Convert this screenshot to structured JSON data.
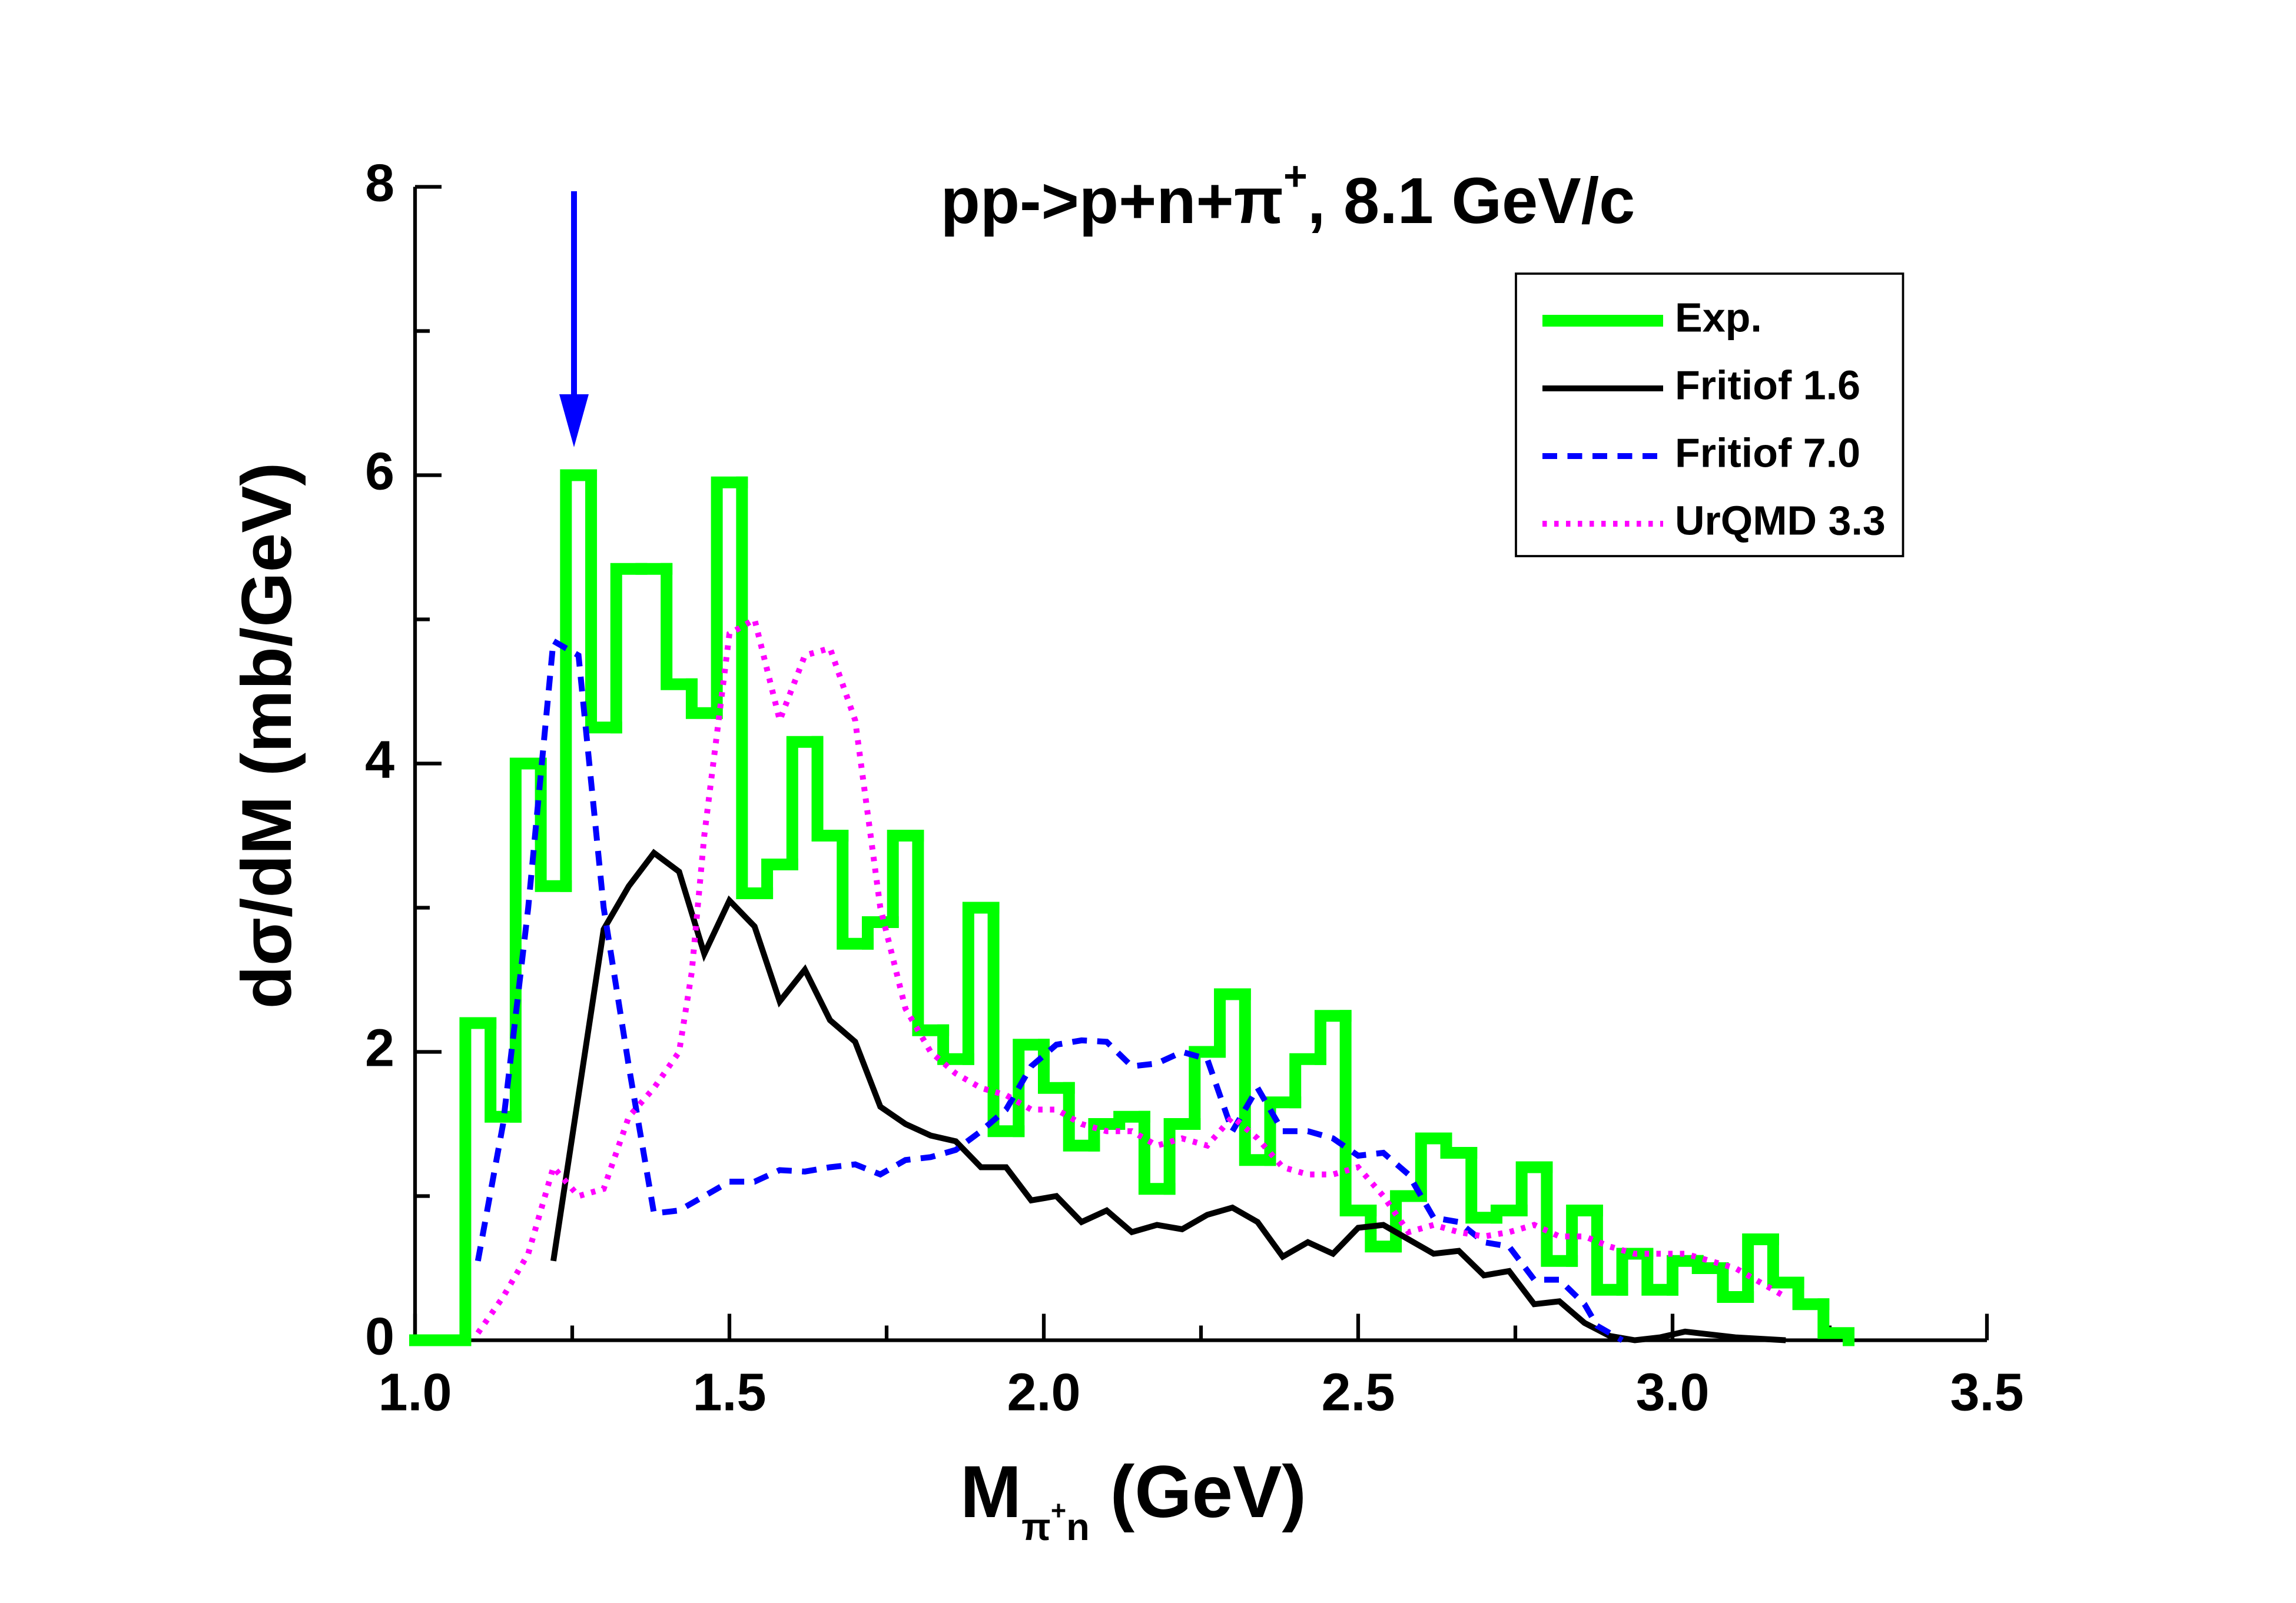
{
  "chart_data": {
    "type": "histogram",
    "title": [
      "pp->p+n+π",
      "+",
      ", 8.1 GeV/c"
    ],
    "xlabel": [
      "M",
      "π",
      "+",
      "n",
      " (GeV)"
    ],
    "ylabel": "dσ/dM (mb/GeV)",
    "xlim": [
      1.0,
      3.5
    ],
    "ylim": [
      0,
      8
    ],
    "xticks": [
      {
        "value": 1.0,
        "label": "1.0"
      },
      1.5,
      {
        "value": 2.0,
        "label": "2.0"
      },
      2.5,
      {
        "value": 3.0,
        "label": "3.0"
      },
      3.5
    ],
    "yticks": [
      0,
      2,
      4,
      6,
      8
    ],
    "xminor": [
      1.25,
      1.75,
      2.25,
      2.75,
      3.25
    ],
    "yminor": [
      1,
      3,
      5,
      7
    ],
    "legend": "upper right",
    "name": "Exp.",
    "color": "#00ff00",
    "bins": [
      1.0,
      1.04,
      1.08,
      1.12,
      1.16,
      1.2,
      1.24,
      1.28,
      1.32,
      1.36,
      1.4,
      1.44,
      1.48,
      1.52,
      1.56,
      1.6,
      1.64,
      1.68,
      1.72,
      1.76,
      1.8,
      1.84,
      1.88,
      1.92,
      1.96,
      2.0,
      2.04,
      2.08,
      2.12,
      2.16,
      2.2,
      2.24,
      2.28,
      2.32,
      2.36,
      2.4,
      2.44,
      2.48,
      2.52,
      2.56,
      2.6,
      2.64,
      2.68,
      2.72,
      2.76,
      2.8,
      2.84,
      2.88,
      2.92,
      2.96,
      3.0,
      3.04,
      3.08,
      3.12,
      3.16,
      3.2,
      3.24,
      3.28
    ],
    "counts": [
      0,
      0,
      2.2,
      1.55,
      4.0,
      3.15,
      6.0,
      4.25,
      5.35,
      5.35,
      4.55,
      4.35,
      5.95,
      3.1,
      3.3,
      4.15,
      3.5,
      2.75,
      2.9,
      3.5,
      2.15,
      1.95,
      3.0,
      1.45,
      2.05,
      1.75,
      1.35,
      1.5,
      1.55,
      1.05,
      1.5,
      2.0,
      2.4,
      1.25,
      1.65,
      1.95,
      2.25,
      0.9,
      0.65,
      1.0,
      1.4,
      1.3,
      0.85,
      0.9,
      1.2,
      0.55,
      0.9,
      0.35,
      0.6,
      0.35,
      0.55,
      0.5,
      0.3,
      0.7,
      0.4,
      0.25,
      0.05
    ],
    "series": [
      {
        "name": "Fritiof 1.6",
        "color": "#000000",
        "dash": "solid",
        "x": [
          1.22,
          1.3,
          1.34,
          1.38,
          1.42,
          1.46,
          1.5,
          1.54,
          1.58,
          1.62,
          1.66,
          1.7,
          1.74,
          1.78,
          1.82,
          1.86,
          1.9,
          1.94,
          1.98,
          2.02,
          2.06,
          2.1,
          2.14,
          2.18,
          2.22,
          2.26,
          2.3,
          2.34,
          2.38,
          2.42,
          2.46,
          2.5,
          2.54,
          2.58,
          2.62,
          2.66,
          2.7,
          2.74,
          2.78,
          2.82,
          2.86,
          2.9,
          2.94,
          2.98,
          3.02,
          3.06,
          3.1,
          3.18
        ],
        "values": [
          0.55,
          2.85,
          3.15,
          3.38,
          3.25,
          2.68,
          3.05,
          2.87,
          2.35,
          2.57,
          2.22,
          2.07,
          1.62,
          1.5,
          1.42,
          1.38,
          1.2,
          1.2,
          0.97,
          1.0,
          0.82,
          0.9,
          0.75,
          0.8,
          0.77,
          0.87,
          0.92,
          0.82,
          0.58,
          0.68,
          0.6,
          0.78,
          0.8,
          0.7,
          0.6,
          0.62,
          0.45,
          0.48,
          0.25,
          0.27,
          0.12,
          0.03,
          0.0,
          0.02,
          0.06,
          0.04,
          0.02,
          0
        ]
      },
      {
        "name": "Fritiof 7.0",
        "color": "#0000ff",
        "dash": "dashed",
        "x": [
          1.1,
          1.14,
          1.18,
          1.22,
          1.26,
          1.3,
          1.34,
          1.38,
          1.42,
          1.46,
          1.5,
          1.54,
          1.58,
          1.62,
          1.66,
          1.7,
          1.74,
          1.78,
          1.82,
          1.86,
          1.9,
          1.94,
          1.98,
          2.02,
          2.06,
          2.1,
          2.14,
          2.18,
          2.22,
          2.26,
          2.3,
          2.34,
          2.38,
          2.42,
          2.46,
          2.5,
          2.54,
          2.58,
          2.62,
          2.66,
          2.7,
          2.74,
          2.78,
          2.82,
          2.86,
          2.88,
          2.92
        ],
        "values": [
          0.55,
          1.5,
          3.0,
          4.85,
          4.75,
          3.0,
          1.9,
          0.88,
          0.9,
          1.0,
          1.1,
          1.1,
          1.18,
          1.17,
          1.2,
          1.22,
          1.15,
          1.25,
          1.27,
          1.32,
          1.45,
          1.6,
          1.9,
          2.05,
          2.08,
          2.07,
          1.9,
          1.92,
          2.0,
          1.95,
          1.45,
          1.75,
          1.45,
          1.45,
          1.4,
          1.28,
          1.3,
          1.15,
          0.85,
          0.82,
          0.68,
          0.65,
          0.42,
          0.42,
          0.25,
          0.1,
          0.0
        ]
      },
      {
        "name": "UrQMD 3.3",
        "color": "#ff00ff",
        "dash": "dotted",
        "x": [
          1.1,
          1.14,
          1.18,
          1.22,
          1.26,
          1.3,
          1.34,
          1.38,
          1.42,
          1.44,
          1.46,
          1.5,
          1.54,
          1.58,
          1.62,
          1.66,
          1.7,
          1.74,
          1.78,
          1.82,
          1.86,
          1.9,
          1.94,
          1.98,
          2.02,
          2.06,
          2.1,
          2.14,
          2.18,
          2.22,
          2.26,
          2.3,
          2.34,
          2.38,
          2.42,
          2.46,
          2.5,
          2.54,
          2.58,
          2.62,
          2.66,
          2.7,
          2.74,
          2.78,
          2.82,
          2.86,
          2.9,
          2.94,
          2.98,
          3.02,
          3.06,
          3.1,
          3.14,
          3.18
        ],
        "values": [
          0.05,
          0.3,
          0.6,
          1.2,
          1.0,
          1.05,
          1.55,
          1.75,
          2.0,
          2.55,
          3.5,
          4.9,
          5.0,
          4.3,
          4.75,
          4.8,
          4.3,
          3.0,
          2.3,
          2.0,
          1.85,
          1.75,
          1.7,
          1.6,
          1.6,
          1.5,
          1.45,
          1.45,
          1.35,
          1.4,
          1.35,
          1.55,
          1.4,
          1.2,
          1.15,
          1.15,
          1.2,
          1.0,
          0.75,
          0.8,
          0.75,
          0.72,
          0.75,
          0.8,
          0.72,
          0.72,
          0.65,
          0.6,
          0.6,
          0.6,
          0.55,
          0.5,
          0.4,
          0.3
        ]
      }
    ]
  }
}
